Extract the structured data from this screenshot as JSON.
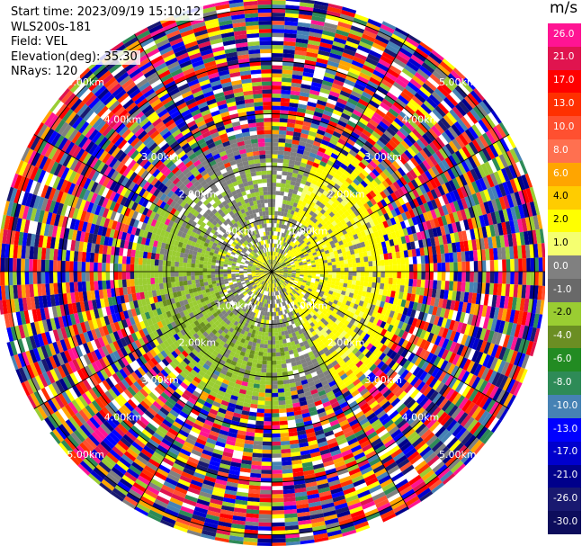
{
  "header": {
    "start_time": "Start time: 2023/09/19 15:10:12",
    "instrument": "WLS200s-181",
    "field": "Field: VEL",
    "elevation": "Elevation(deg): 35.30",
    "nrays": "NRays: 120"
  },
  "colorbar": {
    "unit": "m/s",
    "labels": [
      "26.0",
      "21.0",
      "17.0",
      "13.0",
      "10.0",
      "8.0",
      "6.0",
      "4.0",
      "2.0",
      "1.0",
      "0.0",
      "-1.0",
      "-2.0",
      "-4.0",
      "-6.0",
      "-8.0",
      "-10.0",
      "-13.0",
      "-17.0",
      "-21.0",
      "-26.0",
      "-30.0"
    ],
    "colors": [
      "#ff1493",
      "#e0144f",
      "#ff0000",
      "#ff3000",
      "#ff5030",
      "#ff7050",
      "#ffa500",
      "#ffcc00",
      "#ffff00",
      "#f5ff70",
      "#808080",
      "#696969",
      "#9acd32",
      "#6b8e23",
      "#228b22",
      "#2e8b57",
      "#4682b4",
      "#0000ff",
      "#0000cd",
      "#00008b",
      "#191970",
      "#0d0d5c"
    ]
  },
  "chart_data": {
    "type": "polar-ppi",
    "field": "VEL",
    "units": "m/s",
    "nrays": 120,
    "elevation_deg": 35.3,
    "range_rings": [
      {
        "label": "1.00km"
      },
      {
        "label": "2.00km"
      },
      {
        "label": "3.00km"
      },
      {
        "label": "4.00km"
      },
      {
        "label": "5.00km"
      }
    ],
    "range_ring_values_km": [
      1,
      2,
      3,
      4,
      5
    ],
    "spoke_angles_deg": [
      0,
      30,
      60,
      90,
      120,
      150,
      180,
      210,
      240,
      270,
      300,
      330
    ],
    "color_range": [
      -30.0,
      26.0
    ]
  }
}
